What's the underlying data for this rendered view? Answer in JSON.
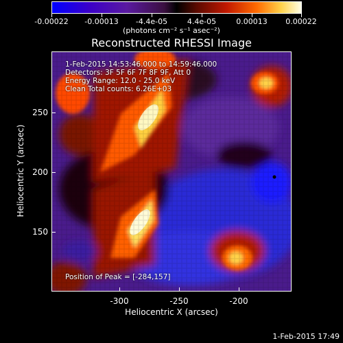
{
  "colorbar": {
    "ticks": [
      "-0.00022",
      "-0.00013",
      "-4.4e-05",
      "4.4e-05",
      "0.00013",
      "0.00022"
    ],
    "units": "(photons cm⁻² s⁻¹ asec⁻²)"
  },
  "title": "Reconstructed RHESSI Image",
  "info": {
    "time": "1-Feb-2015 14:53:46.000 to 14:59:46.000",
    "detectors": "Detectors: 3F 5F 6F 7F 8F 9F, Att 0",
    "energy": "Energy Range: 12.0 - 25.0 keV",
    "clean": "Clean    Total counts: 6.26E+03"
  },
  "peak": "Position of Peak = [-284,157]",
  "axes": {
    "xlabel": "Heliocentric X (arcsec)",
    "ylabel": "Heliocentric Y (arcsec)",
    "xticks": [
      "-300",
      "-250",
      "-200"
    ],
    "yticks": [
      "250",
      "200",
      "150"
    ]
  },
  "timestamp": "1-Feb-2015 17:49",
  "colors": {
    "background": "#000000",
    "colormap": "blue-purple-black-red-yellow-white"
  }
}
